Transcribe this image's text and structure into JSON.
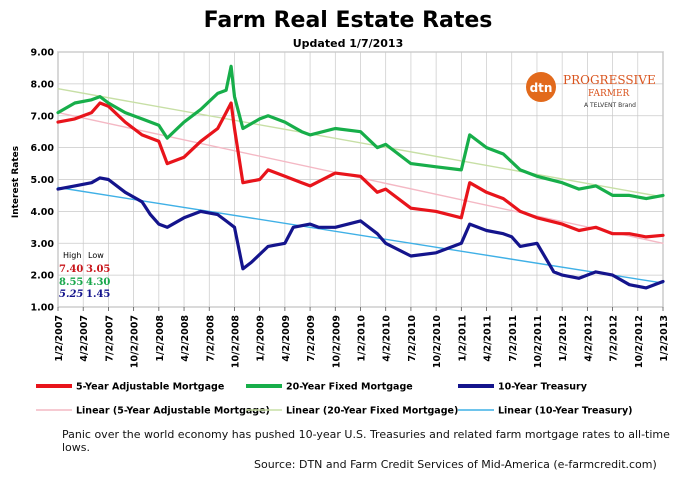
{
  "chart_data": {
    "type": "line",
    "title": "Farm Real Estate Rates",
    "subtitle": "Updated 1/7/2013",
    "ylabel": "Interest Rates",
    "xlabel": "",
    "ylim": [
      1.0,
      9.0
    ],
    "yticks": [
      "1.00",
      "2.00",
      "3.00",
      "4.00",
      "5.00",
      "6.00",
      "7.00",
      "8.00",
      "9.00"
    ],
    "xlim": [
      0,
      72
    ],
    "xtick_labels": [
      "1/2/2007",
      "4/2/2007",
      "7/2/2007",
      "10/2/2007",
      "1/2/2008",
      "4/2/2008",
      "7/2/2008",
      "10/2/2008",
      "1/2/2009",
      "4/2/2009",
      "7/2/2009",
      "10/2/2009",
      "1/2/2010",
      "4/2/2010",
      "7/2/2010",
      "10/2/2010",
      "1/2/2011",
      "4/2/2011",
      "7/2/2011",
      "10/2/2011",
      "1/2/2012",
      "4/2/2012",
      "7/2/2012",
      "10/2/2012",
      "1/2/2013"
    ],
    "grid": true,
    "legend_position": "bottom",
    "series": [
      {
        "name": "5-Year Adjustable Mortgage",
        "color": "#e8141b",
        "kind": "line",
        "x": [
          0,
          2,
          4,
          5,
          6,
          8,
          10,
          12,
          13,
          15,
          17,
          19,
          20,
          20.6,
          21,
          22,
          24,
          25,
          27,
          29,
          30,
          33,
          36,
          38,
          39,
          42,
          45,
          48,
          49,
          51,
          53,
          55,
          57,
          60,
          62,
          64,
          66,
          68,
          70,
          72
        ],
        "y": [
          6.8,
          6.9,
          7.1,
          7.4,
          7.3,
          6.8,
          6.4,
          6.2,
          5.5,
          5.7,
          6.2,
          6.6,
          7.1,
          7.4,
          6.6,
          4.9,
          5.0,
          5.3,
          5.1,
          4.9,
          4.8,
          5.2,
          5.1,
          4.6,
          4.7,
          4.1,
          4.0,
          3.8,
          4.9,
          4.6,
          4.4,
          4.0,
          3.8,
          3.6,
          3.4,
          3.5,
          3.3,
          3.3,
          3.2,
          3.25
        ]
      },
      {
        "name": "20-Year Fixed Mortgage",
        "color": "#17ae4a",
        "kind": "line",
        "x": [
          0,
          2,
          4,
          5,
          6,
          8,
          10,
          12,
          13,
          15,
          17,
          19,
          20,
          20.6,
          21,
          22,
          24,
          25,
          27,
          29,
          30,
          33,
          36,
          38,
          39,
          42,
          45,
          48,
          49,
          51,
          53,
          55,
          57,
          60,
          62,
          64,
          66,
          68,
          70,
          72
        ],
        "y": [
          7.1,
          7.4,
          7.5,
          7.6,
          7.4,
          7.1,
          6.9,
          6.7,
          6.3,
          6.8,
          7.2,
          7.7,
          7.8,
          8.55,
          7.6,
          6.6,
          6.9,
          7.0,
          6.8,
          6.5,
          6.4,
          6.6,
          6.5,
          6.0,
          6.1,
          5.5,
          5.4,
          5.3,
          6.4,
          6.0,
          5.8,
          5.3,
          5.1,
          4.9,
          4.7,
          4.8,
          4.5,
          4.5,
          4.4,
          4.5
        ]
      },
      {
        "name": "10-Year Treasury",
        "color": "#14148c",
        "kind": "line",
        "x": [
          0,
          2,
          4,
          5,
          6,
          8,
          10,
          11,
          12,
          13,
          15,
          17,
          19,
          20,
          21,
          22,
          23,
          25,
          27,
          28,
          30,
          31,
          33,
          36,
          38,
          39,
          42,
          45,
          48,
          49,
          51,
          53,
          54,
          55,
          57,
          59,
          60,
          62,
          64,
          66,
          68,
          70,
          72
        ],
        "y": [
          4.7,
          4.8,
          4.9,
          5.05,
          5.0,
          4.6,
          4.3,
          3.9,
          3.6,
          3.5,
          3.8,
          4.0,
          3.9,
          3.7,
          3.5,
          2.2,
          2.4,
          2.9,
          3.0,
          3.5,
          3.6,
          3.5,
          3.5,
          3.7,
          3.3,
          3.0,
          2.6,
          2.7,
          3.0,
          3.6,
          3.4,
          3.3,
          3.2,
          2.9,
          3.0,
          2.1,
          2.0,
          1.9,
          2.1,
          2.0,
          1.7,
          1.6,
          1.8
        ]
      },
      {
        "name": "Linear (5-Year Adjustable Mortgage)",
        "color": "#f4b8c4",
        "kind": "trend",
        "x": [
          0,
          72
        ],
        "y": [
          7.1,
          3.0
        ]
      },
      {
        "name": "Linear (20-Year Fixed Mortgage)",
        "color": "#c7dfa5",
        "kind": "trend",
        "x": [
          0,
          72
        ],
        "y": [
          7.85,
          4.45
        ]
      },
      {
        "name": "Linear (10-Year Treasury)",
        "color": "#3fb0e6",
        "kind": "trend",
        "x": [
          0,
          72
        ],
        "y": [
          4.75,
          1.75
        ]
      }
    ],
    "highlow": {
      "header_high": "High",
      "header_low": "Low",
      "rows": [
        {
          "high": "7.40",
          "low": "3.05",
          "color": "#c8161b"
        },
        {
          "high": "8.55",
          "low": "4.30",
          "color": "#17a64a"
        },
        {
          "high": "5.25",
          "low": "1.45",
          "color": "#14148c"
        }
      ]
    }
  },
  "logo": {
    "dtn": "dtn",
    "brand_line1": "PROGRESSIVE",
    "brand_line2": "FARMER",
    "tagline": "A TELVENT Brand"
  },
  "notes": {
    "comment": "Panic over the world economy has pushed 10-year U.S. Treasuries and related farm mortgage rates to all-time lows.",
    "source": "Source: DTN and Farm Credit Services of Mid-America (e-farmcredit.com)"
  }
}
